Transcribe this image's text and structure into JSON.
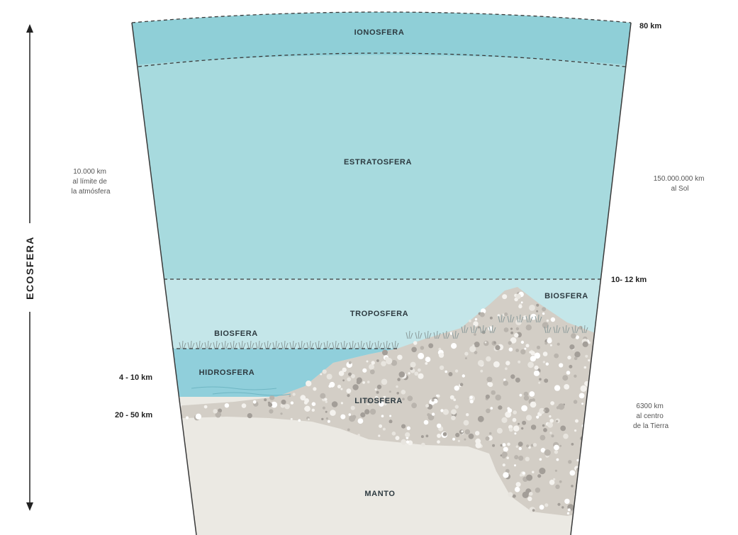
{
  "vertical_axis": {
    "label": "ECOSFERA"
  },
  "layers": {
    "ionosfera": "IONOSFERA",
    "estratosfera": "ESTRATOSFERA",
    "troposfera": "TROPOSFERA",
    "biosfera_left": "BIOSFERA",
    "biosfera_right": "BIOSFERA",
    "hidrosfera": "HIDROSFERA",
    "litosfera": "LITOSFERA",
    "manto": "MANTO"
  },
  "altitudes": {
    "top": "80 km",
    "tropopause": "10- 12 km",
    "ocean_depth": "4 - 10 km",
    "crust_depth": "20 - 50 km"
  },
  "notes": {
    "atmosphere_limit": [
      "10.000 km",
      "al límite de",
      "la atmósfera"
    ],
    "sun_distance": [
      "150.000.000 km",
      "al  Sol"
    ],
    "earth_center": [
      "6300 km",
      "al centro",
      "de la Tierra"
    ]
  },
  "colors": {
    "ionosphere": "#8fcfd7",
    "stratosphere": "#a7dade",
    "troposphere": "#c4e6e9",
    "hydrosphere": "#90cfdb",
    "lithosphere": "#d3cec6",
    "mantle": "#ebe9e3",
    "outline": "#3a3a3a"
  }
}
